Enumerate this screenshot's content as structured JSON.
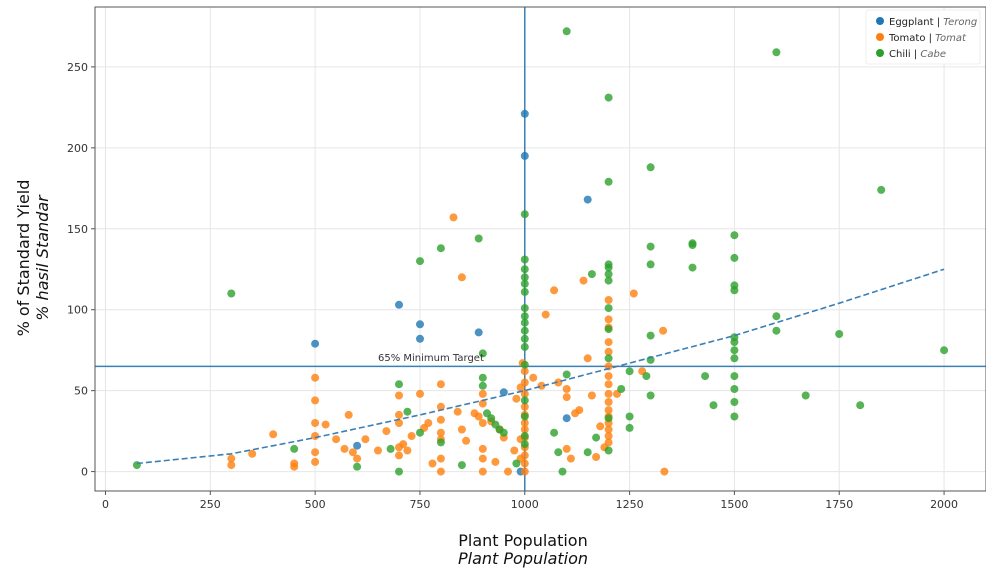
{
  "chart_data": {
    "type": "scatter",
    "title": "",
    "xlabel": "Plant Population",
    "xlabel_translation": "Plant Population",
    "ylabel": "% of Standard Yield",
    "ylabel_translation": "% hasil Standar",
    "xlim": [
      -25,
      2100
    ],
    "ylim": [
      -12,
      287
    ],
    "xticks": [
      0,
      250,
      500,
      750,
      1000,
      1250,
      1500,
      1750,
      2000
    ],
    "yticks": [
      0,
      50,
      100,
      150,
      200,
      250
    ],
    "grid": true,
    "legend_position": "top-right",
    "colors": {
      "Eggplant": "#1f77b4",
      "Tomato": "#ff7f0e",
      "Chili": "#2ca02c",
      "reference_lines": "#3a7fb5",
      "trend": "#3a7fb5",
      "grid": "#e6e6e6",
      "axes": "#555555"
    },
    "legend": [
      {
        "series": "Eggplant",
        "label": "Eggplant",
        "translation": "Terong"
      },
      {
        "series": "Tomato",
        "label": "Tomato",
        "translation": "Tomat"
      },
      {
        "series": "Chili",
        "label": "Chili",
        "translation": "Cabe"
      }
    ],
    "reference_lines": {
      "vertical_x": 1000,
      "horizontal_y": 65,
      "horizontal_label": "65% Minimum Target"
    },
    "trend_line": {
      "style": "dashed",
      "points": [
        [
          75,
          5
        ],
        [
          300,
          11
        ],
        [
          500,
          21
        ],
        [
          750,
          35
        ],
        [
          1000,
          50
        ],
        [
          1250,
          67
        ],
        [
          1500,
          84
        ],
        [
          1750,
          104
        ],
        [
          2000,
          125
        ]
      ]
    },
    "series": [
      {
        "name": "Eggplant",
        "points": [
          [
            500,
            79
          ],
          [
            600,
            16
          ],
          [
            700,
            103
          ],
          [
            750,
            91
          ],
          [
            750,
            82
          ],
          [
            890,
            86
          ],
          [
            950,
            49
          ],
          [
            990,
            0
          ],
          [
            1000,
            221
          ],
          [
            1000,
            195
          ],
          [
            1100,
            33
          ],
          [
            1150,
            168
          ]
        ]
      },
      {
        "name": "Tomato",
        "points": [
          [
            300,
            8
          ],
          [
            300,
            4
          ],
          [
            350,
            11
          ],
          [
            400,
            23
          ],
          [
            450,
            5
          ],
          [
            450,
            3
          ],
          [
            500,
            58
          ],
          [
            500,
            44
          ],
          [
            500,
            30
          ],
          [
            500,
            22
          ],
          [
            500,
            12
          ],
          [
            500,
            6
          ],
          [
            525,
            29
          ],
          [
            550,
            20
          ],
          [
            570,
            14
          ],
          [
            580,
            35
          ],
          [
            590,
            12
          ],
          [
            600,
            8
          ],
          [
            620,
            20
          ],
          [
            650,
            13
          ],
          [
            670,
            25
          ],
          [
            700,
            47
          ],
          [
            700,
            35
          ],
          [
            700,
            30
          ],
          [
            700,
            15
          ],
          [
            700,
            10
          ],
          [
            710,
            17
          ],
          [
            720,
            13
          ],
          [
            730,
            22
          ],
          [
            750,
            48
          ],
          [
            760,
            27
          ],
          [
            770,
            30
          ],
          [
            780,
            5
          ],
          [
            800,
            54
          ],
          [
            800,
            40
          ],
          [
            800,
            32
          ],
          [
            800,
            24
          ],
          [
            800,
            20
          ],
          [
            800,
            8
          ],
          [
            800,
            0
          ],
          [
            830,
            157
          ],
          [
            840,
            37
          ],
          [
            850,
            120
          ],
          [
            850,
            26
          ],
          [
            860,
            19
          ],
          [
            880,
            36
          ],
          [
            890,
            34
          ],
          [
            900,
            48
          ],
          [
            900,
            42
          ],
          [
            900,
            30
          ],
          [
            900,
            14
          ],
          [
            900,
            8
          ],
          [
            900,
            0
          ],
          [
            920,
            31
          ],
          [
            930,
            6
          ],
          [
            940,
            26
          ],
          [
            950,
            21
          ],
          [
            960,
            0
          ],
          [
            975,
            13
          ],
          [
            980,
            45
          ],
          [
            990,
            52
          ],
          [
            990,
            20
          ],
          [
            990,
            8
          ],
          [
            995,
            67
          ],
          [
            1000,
            62
          ],
          [
            1000,
            55
          ],
          [
            1000,
            48
          ],
          [
            1000,
            40
          ],
          [
            1000,
            35
          ],
          [
            1000,
            30
          ],
          [
            1000,
            26
          ],
          [
            1000,
            21
          ],
          [
            1000,
            15
          ],
          [
            1000,
            10
          ],
          [
            1000,
            5
          ],
          [
            1000,
            0
          ],
          [
            1020,
            58
          ],
          [
            1040,
            53
          ],
          [
            1050,
            97
          ],
          [
            1070,
            112
          ],
          [
            1080,
            55
          ],
          [
            1100,
            51
          ],
          [
            1100,
            46
          ],
          [
            1100,
            14
          ],
          [
            1110,
            8
          ],
          [
            1120,
            36
          ],
          [
            1130,
            38
          ],
          [
            1140,
            118
          ],
          [
            1150,
            70
          ],
          [
            1160,
            47
          ],
          [
            1170,
            9
          ],
          [
            1180,
            28
          ],
          [
            1190,
            15
          ],
          [
            1200,
            106
          ],
          [
            1200,
            94
          ],
          [
            1200,
            89
          ],
          [
            1200,
            80
          ],
          [
            1200,
            74
          ],
          [
            1200,
            65
          ],
          [
            1200,
            59
          ],
          [
            1200,
            54
          ],
          [
            1200,
            48
          ],
          [
            1200,
            43
          ],
          [
            1200,
            38
          ],
          [
            1200,
            34
          ],
          [
            1200,
            30
          ],
          [
            1200,
            26
          ],
          [
            1200,
            22
          ],
          [
            1200,
            18
          ],
          [
            1220,
            48
          ],
          [
            1260,
            110
          ],
          [
            1280,
            62
          ],
          [
            1330,
            87
          ],
          [
            1333,
            0
          ]
        ]
      },
      {
        "name": "Chili",
        "points": [
          [
            75,
            4
          ],
          [
            300,
            110
          ],
          [
            450,
            14
          ],
          [
            600,
            3
          ],
          [
            680,
            14
          ],
          [
            700,
            54
          ],
          [
            700,
            0
          ],
          [
            720,
            37
          ],
          [
            750,
            130
          ],
          [
            750,
            24
          ],
          [
            800,
            138
          ],
          [
            800,
            18
          ],
          [
            850,
            4
          ],
          [
            890,
            144
          ],
          [
            900,
            73
          ],
          [
            900,
            58
          ],
          [
            900,
            53
          ],
          [
            910,
            36
          ],
          [
            920,
            33
          ],
          [
            930,
            29
          ],
          [
            940,
            26
          ],
          [
            950,
            24
          ],
          [
            980,
            5
          ],
          [
            1000,
            159
          ],
          [
            1000,
            131
          ],
          [
            1000,
            125
          ],
          [
            1000,
            120
          ],
          [
            1000,
            116
          ],
          [
            1000,
            111
          ],
          [
            1000,
            101
          ],
          [
            1000,
            96
          ],
          [
            1000,
            92
          ],
          [
            1000,
            87
          ],
          [
            1000,
            82
          ],
          [
            1000,
            77
          ],
          [
            1000,
            66
          ],
          [
            1000,
            44
          ],
          [
            1000,
            34
          ],
          [
            1000,
            22
          ],
          [
            1000,
            17
          ],
          [
            1070,
            24
          ],
          [
            1080,
            12
          ],
          [
            1090,
            0
          ],
          [
            1100,
            272
          ],
          [
            1100,
            60
          ],
          [
            1150,
            12
          ],
          [
            1160,
            122
          ],
          [
            1170,
            21
          ],
          [
            1200,
            231
          ],
          [
            1200,
            179
          ],
          [
            1200,
            128
          ],
          [
            1200,
            126
          ],
          [
            1200,
            122
          ],
          [
            1200,
            118
          ],
          [
            1200,
            101
          ],
          [
            1200,
            88
          ],
          [
            1200,
            70
          ],
          [
            1200,
            33
          ],
          [
            1200,
            13
          ],
          [
            1230,
            51
          ],
          [
            1250,
            62
          ],
          [
            1250,
            34
          ],
          [
            1250,
            27
          ],
          [
            1290,
            59
          ],
          [
            1300,
            188
          ],
          [
            1300,
            139
          ],
          [
            1300,
            128
          ],
          [
            1300,
            84
          ],
          [
            1300,
            69
          ],
          [
            1300,
            47
          ],
          [
            1400,
            141
          ],
          [
            1400,
            140
          ],
          [
            1400,
            126
          ],
          [
            1430,
            59
          ],
          [
            1450,
            41
          ],
          [
            1500,
            146
          ],
          [
            1500,
            132
          ],
          [
            1500,
            115
          ],
          [
            1500,
            112
          ],
          [
            1500,
            83
          ],
          [
            1500,
            80
          ],
          [
            1500,
            75
          ],
          [
            1500,
            70
          ],
          [
            1500,
            59
          ],
          [
            1500,
            51
          ],
          [
            1500,
            43
          ],
          [
            1500,
            34
          ],
          [
            1600,
            259
          ],
          [
            1600,
            96
          ],
          [
            1600,
            87
          ],
          [
            1670,
            47
          ],
          [
            1750,
            85
          ],
          [
            1800,
            41
          ],
          [
            1850,
            174
          ],
          [
            2000,
            75
          ]
        ]
      }
    ]
  }
}
